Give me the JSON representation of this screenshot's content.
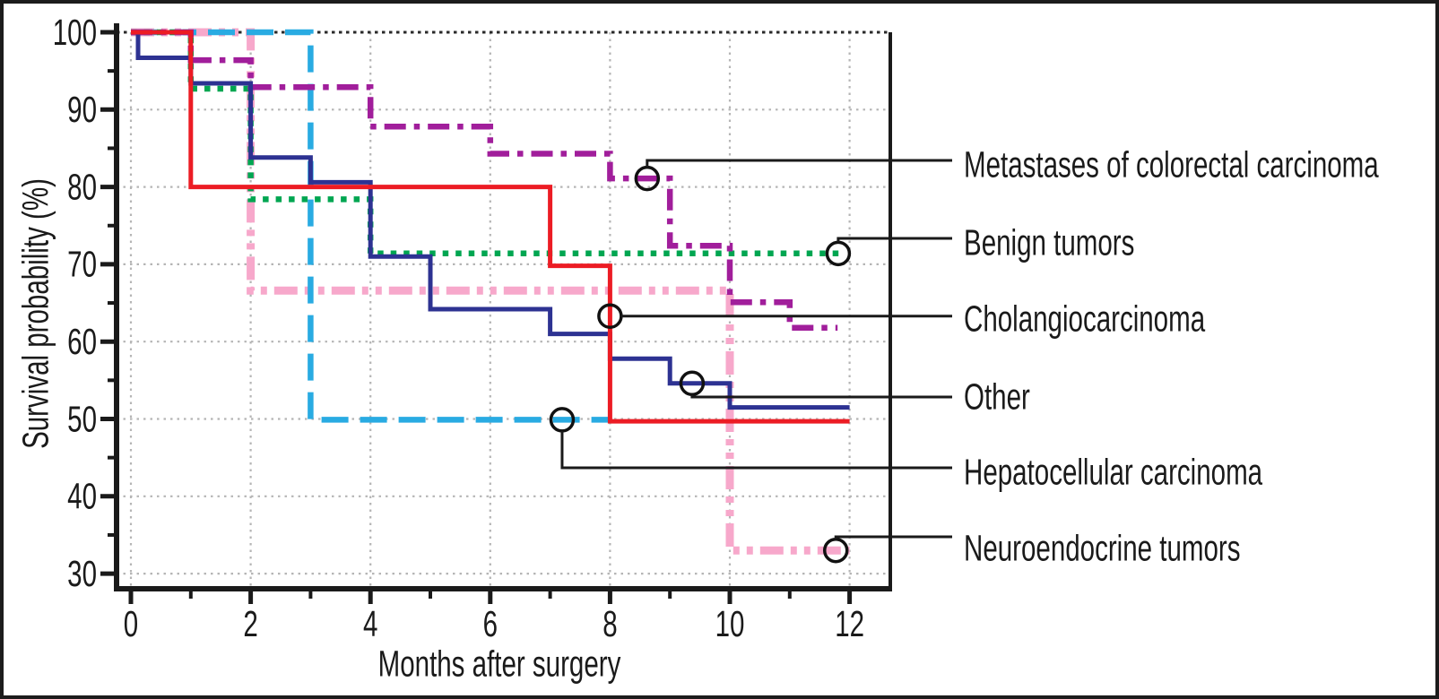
{
  "figure": {
    "background": "#ffffff",
    "border_color": "#1c1c1c"
  },
  "chart_data": {
    "type": "line",
    "subtype": "kaplan_meier_step_survival",
    "title": "",
    "xlabel": "Months after surgery",
    "ylabel": "Survival probability (%)",
    "xlim": [
      0,
      12.7
    ],
    "ylim": [
      28,
      101
    ],
    "x_ticks": [
      0,
      2,
      4,
      6,
      8,
      10,
      12
    ],
    "x_minor_ticks": [
      1,
      3,
      5,
      7,
      9,
      11
    ],
    "y_ticks": [
      30,
      40,
      50,
      60,
      70,
      80,
      90,
      100
    ],
    "y_minor_ticks": [
      35,
      45,
      55,
      65,
      75,
      85,
      95
    ],
    "grid": "dotted",
    "grid_color": "#b5b5b5",
    "top_grid_100_color": "#2a2a2a",
    "legend_position": "right-annotations-with-leader-lines",
    "series": [
      {
        "name": "Metastases of colorectal carcinoma",
        "color": "#A11E9B",
        "style": "dash-dot",
        "points": [
          [
            0,
            100
          ],
          [
            1,
            100
          ],
          [
            1,
            96.4
          ],
          [
            2,
            96.4
          ],
          [
            2,
            92.9
          ],
          [
            4,
            92.9
          ],
          [
            4,
            87.8
          ],
          [
            6,
            87.8
          ],
          [
            6,
            84.3
          ],
          [
            8,
            84.3
          ],
          [
            8,
            81.1
          ],
          [
            9,
            81.1
          ],
          [
            9,
            72.4
          ],
          [
            10,
            72.4
          ],
          [
            10,
            65.1
          ],
          [
            11,
            65.1
          ],
          [
            11,
            61.8
          ],
          [
            11.8,
            61.8
          ]
        ],
        "marker_at": [
          8.62,
          81.1
        ]
      },
      {
        "name": "Benign tumors",
        "color": "#00A651",
        "style": "dotted",
        "points": [
          [
            0,
            100
          ],
          [
            1,
            100
          ],
          [
            1,
            92.7
          ],
          [
            2,
            92.7
          ],
          [
            2,
            78.4
          ],
          [
            4,
            78.4
          ],
          [
            4,
            71.4
          ],
          [
            11.85,
            71.4
          ]
        ],
        "marker_at": [
          11.81,
          71.4
        ]
      },
      {
        "name": "Cholangiocarcinoma",
        "color": "#EC1C24",
        "style": "solid",
        "points": [
          [
            0,
            100
          ],
          [
            1,
            100
          ],
          [
            1,
            80
          ],
          [
            7,
            80
          ],
          [
            7,
            69.8
          ],
          [
            8,
            69.8
          ],
          [
            8,
            49.7
          ],
          [
            12,
            49.7
          ]
        ],
        "marker_at": [
          8,
          63.3
        ]
      },
      {
        "name": "Other",
        "color": "#2D3292",
        "style": "solid",
        "points": [
          [
            0,
            100
          ],
          [
            0.12,
            100
          ],
          [
            0.12,
            96.7
          ],
          [
            1,
            96.7
          ],
          [
            1,
            93.4
          ],
          [
            2,
            93.4
          ],
          [
            2,
            83.8
          ],
          [
            3,
            83.8
          ],
          [
            3,
            80.6
          ],
          [
            4,
            80.6
          ],
          [
            4,
            71
          ],
          [
            5,
            71
          ],
          [
            5,
            64.2
          ],
          [
            7,
            64.2
          ],
          [
            7,
            61
          ],
          [
            8,
            61
          ],
          [
            8,
            57.8
          ],
          [
            9,
            57.8
          ],
          [
            9,
            54.6
          ],
          [
            10,
            54.6
          ],
          [
            10,
            51.5
          ],
          [
            12,
            51.5
          ]
        ],
        "marker_at": [
          9.37,
          54.6
        ]
      },
      {
        "name": "Hepatocellular carcinoma",
        "color": "#29ABE2",
        "style": "dashed",
        "points": [
          [
            0,
            100
          ],
          [
            3,
            100
          ],
          [
            3,
            49.9
          ],
          [
            8,
            49.9
          ]
        ],
        "marker_at": [
          7.2,
          49.9
        ]
      },
      {
        "name": "Neuroendocrine tumors",
        "color": "#F7A8CB",
        "style": "dash-dot-dot",
        "points": [
          [
            0,
            100
          ],
          [
            2,
            100
          ],
          [
            2,
            66.6
          ],
          [
            10,
            66.6
          ],
          [
            10,
            33
          ],
          [
            12,
            33
          ]
        ],
        "marker_at": [
          11.77,
          33
        ]
      }
    ]
  }
}
